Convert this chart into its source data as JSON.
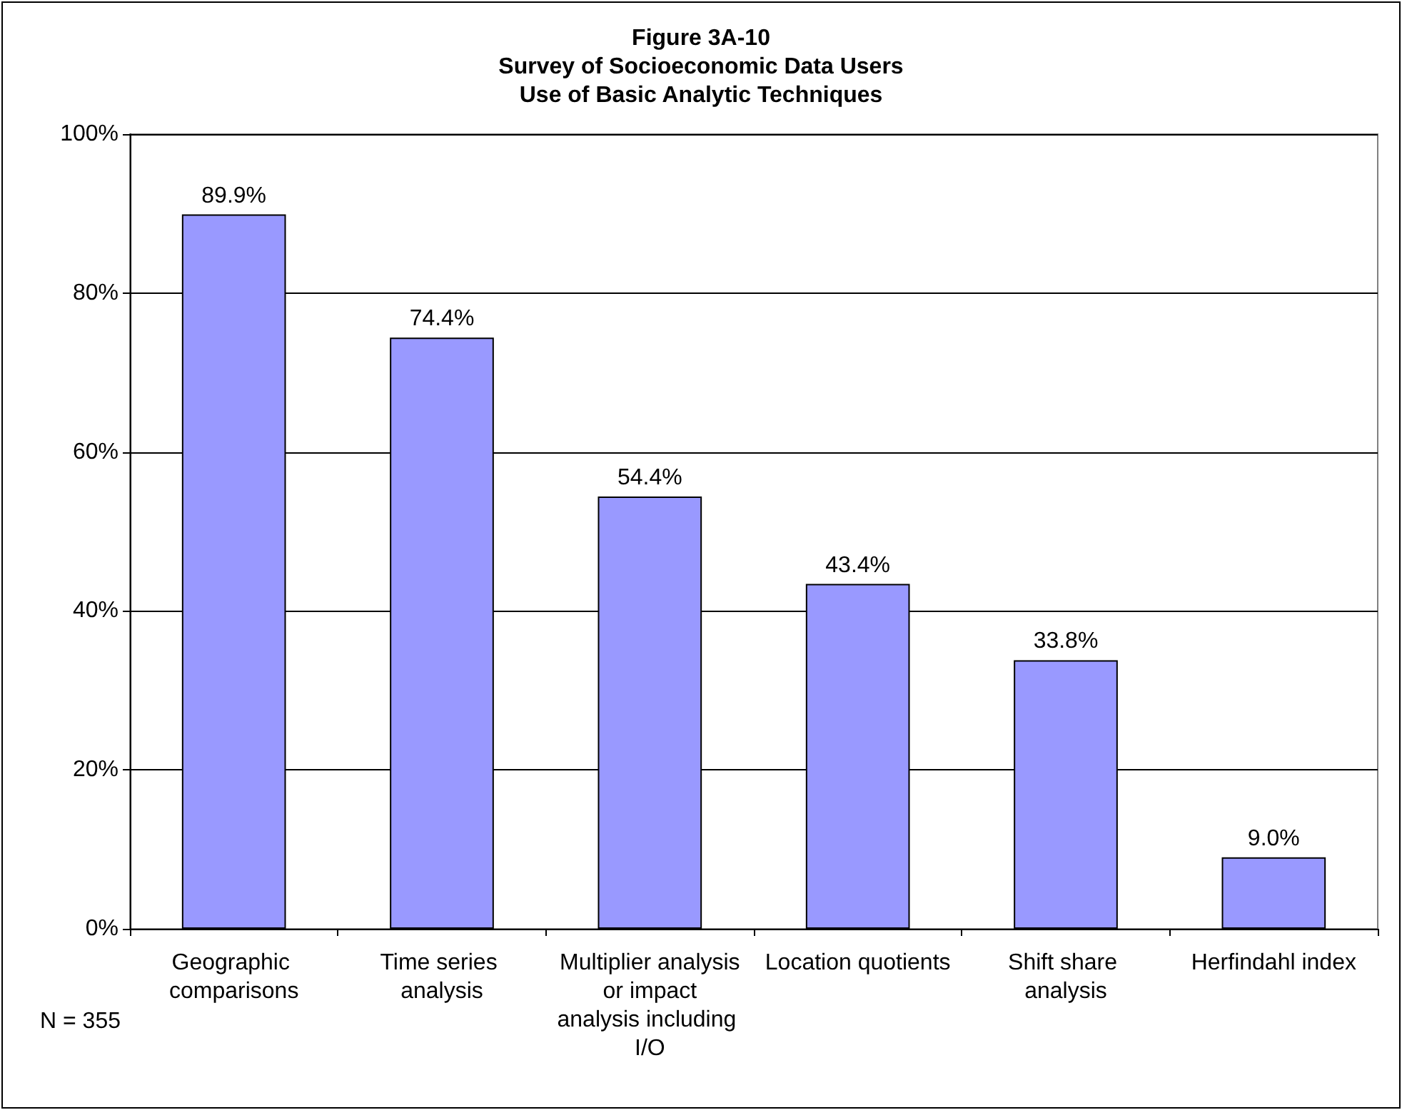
{
  "chart_data": {
    "type": "bar",
    "title": "Figure 3A-10\nSurvey of Socioeconomic Data Users\nUse of Basic Analytic Techniques",
    "categories": [
      "Geographic comparisons",
      "Time series analysis",
      "Multiplier analysis or impact analysis including I/O",
      "Location quotients",
      "Shift share analysis",
      "Herfindahl index"
    ],
    "values": [
      89.9,
      74.4,
      54.4,
      43.4,
      33.8,
      9.0
    ],
    "value_labels": [
      "89.9%",
      "74.4%",
      "54.4%",
      "43.4%",
      "33.8%",
      "9.0%"
    ],
    "color": "#9999ff",
    "ylim": [
      0,
      100
    ],
    "yticks": [
      {
        "value": 0,
        "label": "0%"
      },
      {
        "value": 20,
        "label": "20%"
      },
      {
        "value": 40,
        "label": "40%"
      },
      {
        "value": 60,
        "label": "60%"
      },
      {
        "value": 80,
        "label": "80%"
      },
      {
        "value": 100,
        "label": "100%"
      }
    ],
    "grid": "y",
    "annotations": [
      "N = 355"
    ]
  }
}
